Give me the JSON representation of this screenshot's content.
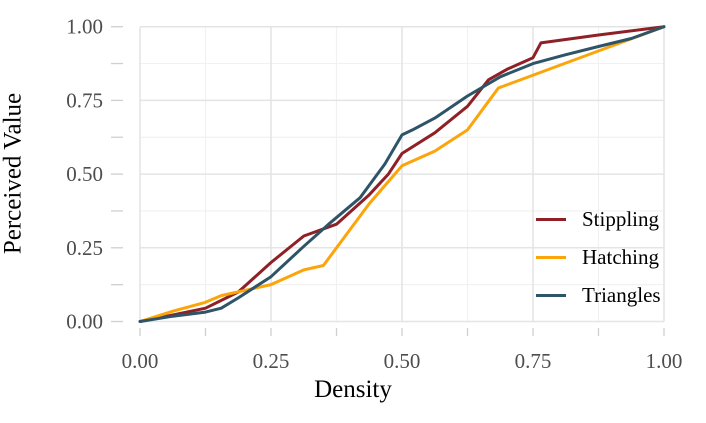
{
  "chart_data": {
    "type": "line",
    "title": "",
    "xlabel": "Density",
    "ylabel": "Perceived Value",
    "xlim": [
      0,
      1
    ],
    "ylim": [
      0,
      1
    ],
    "grid": true,
    "major_ticks": [
      0,
      0.25,
      0.5,
      0.75,
      1.0
    ],
    "minor_ticks": [
      0.125,
      0.375,
      0.625,
      0.875
    ],
    "x_tick_labels": [
      "0.00",
      "0.25",
      "0.50",
      "0.75",
      "1.00"
    ],
    "y_tick_labels": [
      "0.00",
      "0.25",
      "0.50",
      "0.75",
      "1.00"
    ],
    "legend_position": "inside-right",
    "series": [
      {
        "name": "Stippling",
        "color": "#8E2026",
        "points": [
          [
            0,
            0
          ],
          [
            0.0625,
            0.022
          ],
          [
            0.125,
            0.045
          ],
          [
            0.1875,
            0.1
          ],
          [
            0.25,
            0.2
          ],
          [
            0.3125,
            0.29
          ],
          [
            0.375,
            0.33
          ],
          [
            0.4375,
            0.43
          ],
          [
            0.474,
            0.5
          ],
          [
            0.5,
            0.57
          ],
          [
            0.5625,
            0.64
          ],
          [
            0.625,
            0.73
          ],
          [
            0.665,
            0.82
          ],
          [
            0.7,
            0.855
          ],
          [
            0.75,
            0.895
          ],
          [
            0.765,
            0.945
          ],
          [
            0.875,
            0.972
          ],
          [
            1,
            1
          ]
        ]
      },
      {
        "name": "Hatching",
        "color": "#FCA50A",
        "points": [
          [
            0,
            0
          ],
          [
            0.0625,
            0.035
          ],
          [
            0.125,
            0.065
          ],
          [
            0.155,
            0.088
          ],
          [
            0.25,
            0.125
          ],
          [
            0.3125,
            0.175
          ],
          [
            0.35,
            0.19
          ],
          [
            0.4375,
            0.4
          ],
          [
            0.5,
            0.528
          ],
          [
            0.5625,
            0.578
          ],
          [
            0.625,
            0.65
          ],
          [
            0.684,
            0.792
          ],
          [
            1,
            1
          ]
        ]
      },
      {
        "name": "Triangles",
        "color": "#2E5468",
        "points": [
          [
            0,
            0
          ],
          [
            0.0625,
            0.018
          ],
          [
            0.125,
            0.032
          ],
          [
            0.155,
            0.045
          ],
          [
            0.1875,
            0.08
          ],
          [
            0.25,
            0.152
          ],
          [
            0.3125,
            0.255
          ],
          [
            0.36,
            0.33
          ],
          [
            0.42,
            0.42
          ],
          [
            0.4675,
            0.535
          ],
          [
            0.5,
            0.633
          ],
          [
            0.52,
            0.65
          ],
          [
            0.5625,
            0.69
          ],
          [
            0.625,
            0.765
          ],
          [
            0.6875,
            0.83
          ],
          [
            0.75,
            0.875
          ],
          [
            0.8125,
            0.905
          ],
          [
            0.875,
            0.933
          ],
          [
            0.9375,
            0.96
          ],
          [
            1,
            1
          ]
        ]
      }
    ],
    "style": {
      "background": "#FFFFFF",
      "major_grid_color": "#E4E4E4",
      "minor_grid_color": "#F1F1F1",
      "tick_color": "#CFCFCF",
      "tick_label_color": "#4D4D4D",
      "axis_title_color": "#000000",
      "line_width": 3
    }
  }
}
